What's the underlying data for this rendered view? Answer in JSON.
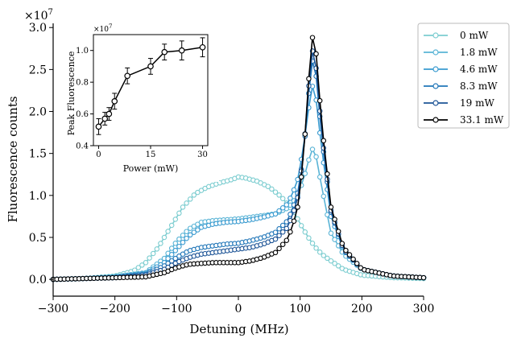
{
  "chart_data": [
    {
      "type": "line",
      "xlabel": "Detuning (MHz)",
      "ylabel": "Fluorescence counts",
      "xlim": [
        -300,
        300
      ],
      "ylim": [
        -0.2,
        3.05
      ],
      "y_multiplier_label": "×10",
      "y_multiplier_exp": "7",
      "xticks": [
        -300,
        -200,
        -100,
        0,
        100,
        200,
        300
      ],
      "xtick_labels": [
        "−300",
        "−200",
        "−100",
        "0",
        "100",
        "200",
        "300"
      ],
      "yticks": [
        0,
        0.5,
        1.0,
        1.5,
        2.0,
        2.5,
        3.0
      ],
      "ytick_labels": [
        "0.0",
        "0.5",
        "1.0",
        "1.5",
        "2.0",
        "2.5",
        "3.0"
      ],
      "legend_position": "right",
      "grid": false,
      "marker": "open-circle",
      "series": [
        {
          "name": "0 mW",
          "color": "#7ccdd0",
          "x": [
            -300,
            -250,
            -200,
            -170,
            -150,
            -130,
            -110,
            -90,
            -70,
            -50,
            -30,
            -10,
            0,
            10,
            30,
            50,
            70,
            90,
            105,
            115,
            125,
            135,
            150,
            170,
            200,
            250,
            300
          ],
          "y": [
            0.0,
            0.01,
            0.04,
            0.1,
            0.2,
            0.38,
            0.62,
            0.86,
            1.02,
            1.1,
            1.15,
            1.19,
            1.22,
            1.21,
            1.17,
            1.1,
            0.98,
            0.8,
            0.6,
            0.48,
            0.38,
            0.3,
            0.22,
            0.12,
            0.05,
            0.02,
            0.01
          ]
        },
        {
          "name": "1.8 mW",
          "color": "#5ab4d6",
          "x": [
            -300,
            -250,
            -200,
            -150,
            -120,
            -100,
            -80,
            -60,
            -40,
            -20,
            0,
            20,
            40,
            60,
            80,
            95,
            105,
            115,
            120,
            125,
            135,
            150,
            170,
            200,
            250,
            300
          ],
          "y": [
            0.0,
            0.01,
            0.03,
            0.08,
            0.25,
            0.45,
            0.6,
            0.68,
            0.7,
            0.71,
            0.72,
            0.74,
            0.76,
            0.78,
            0.85,
            0.98,
            1.18,
            1.45,
            1.55,
            1.5,
            1.1,
            0.55,
            0.3,
            0.12,
            0.04,
            0.02
          ]
        },
        {
          "name": "4.6 mW",
          "color": "#3a9bd0",
          "x": [
            -300,
            -250,
            -200,
            -150,
            -120,
            -100,
            -80,
            -60,
            -40,
            -20,
            0,
            20,
            40,
            60,
            80,
            95,
            105,
            115,
            120,
            125,
            135,
            150,
            170,
            200,
            250,
            300
          ],
          "y": [
            0.0,
            0.01,
            0.03,
            0.07,
            0.2,
            0.36,
            0.52,
            0.62,
            0.66,
            0.68,
            0.69,
            0.71,
            0.74,
            0.78,
            0.9,
            1.15,
            1.55,
            2.1,
            2.3,
            2.2,
            1.55,
            0.75,
            0.35,
            0.12,
            0.04,
            0.02
          ]
        },
        {
          "name": "8.3 mW",
          "color": "#2176b8",
          "x": [
            -300,
            -250,
            -200,
            -150,
            -120,
            -100,
            -80,
            -60,
            -40,
            -20,
            0,
            20,
            40,
            60,
            80,
            95,
            105,
            115,
            120,
            125,
            135,
            150,
            170,
            200,
            250,
            300
          ],
          "y": [
            0.0,
            0.01,
            0.02,
            0.06,
            0.16,
            0.26,
            0.34,
            0.38,
            0.4,
            0.42,
            0.43,
            0.46,
            0.5,
            0.56,
            0.7,
            0.98,
            1.45,
            2.3,
            2.6,
            2.5,
            1.7,
            0.8,
            0.36,
            0.12,
            0.04,
            0.02
          ]
        },
        {
          "name": "19 mW",
          "color": "#1d5496",
          "x": [
            -300,
            -250,
            -200,
            -150,
            -120,
            -100,
            -80,
            -60,
            -40,
            -20,
            0,
            20,
            40,
            60,
            80,
            95,
            105,
            115,
            120,
            125,
            135,
            150,
            170,
            200,
            250,
            300
          ],
          "y": [
            0.0,
            0.01,
            0.02,
            0.05,
            0.12,
            0.2,
            0.26,
            0.3,
            0.32,
            0.34,
            0.36,
            0.38,
            0.42,
            0.48,
            0.62,
            0.92,
            1.45,
            2.4,
            2.72,
            2.6,
            1.75,
            0.82,
            0.36,
            0.12,
            0.04,
            0.02
          ]
        },
        {
          "name": "33.1 mW",
          "color": "#000000",
          "x": [
            -300,
            -250,
            -200,
            -150,
            -120,
            -100,
            -80,
            -60,
            -40,
            -20,
            0,
            20,
            40,
            60,
            80,
            95,
            105,
            115,
            120,
            125,
            135,
            150,
            170,
            200,
            250,
            300
          ],
          "y": [
            0.0,
            0.01,
            0.02,
            0.03,
            0.08,
            0.14,
            0.18,
            0.19,
            0.2,
            0.2,
            0.2,
            0.22,
            0.26,
            0.32,
            0.48,
            0.8,
            1.4,
            2.5,
            2.88,
            2.78,
            1.85,
            0.86,
            0.38,
            0.12,
            0.04,
            0.02
          ]
        }
      ]
    },
    {
      "type": "line",
      "xlabel": "Power (mW)",
      "ylabel": "Peak Fluorescence",
      "xlim": [
        -1.5,
        31.5
      ],
      "ylim": [
        0.4,
        1.1
      ],
      "y_multiplier_label": "×10",
      "y_multiplier_exp": "7",
      "xticks": [
        0,
        15,
        30
      ],
      "xtick_labels": [
        "0",
        "15",
        "30"
      ],
      "yticks": [
        0.4,
        0.6,
        0.8,
        1.0
      ],
      "ytick_labels": [
        "0.4",
        "0.6",
        "0.8",
        "1.0"
      ],
      "marker": "open-circle",
      "series": [
        {
          "color": "#000000",
          "x": [
            0,
            1.8,
            3,
            4.6,
            8.3,
            15,
            19,
            24,
            30
          ],
          "y": [
            0.52,
            0.57,
            0.6,
            0.68,
            0.84,
            0.9,
            0.99,
            1.0,
            1.02
          ],
          "err": [
            0.05,
            0.04,
            0.04,
            0.05,
            0.05,
            0.05,
            0.05,
            0.06,
            0.06
          ]
        }
      ]
    }
  ]
}
